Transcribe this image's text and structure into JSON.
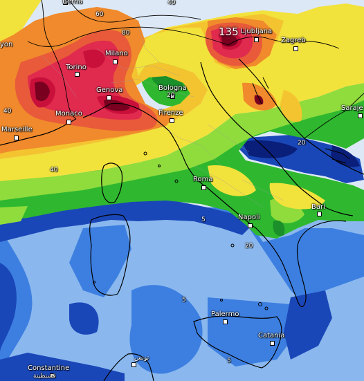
{
  "cities": {
    "bern": "Berna",
    "milano": "Milano",
    "torino": "Torino",
    "genova": "Genova",
    "monaco": "Monaco",
    "marseille": "Marseille",
    "bologna": "Bologna",
    "firenze": "Firenze",
    "roma": "Roma",
    "napoli": "Napoli",
    "bari": "Bari",
    "palermo": "Palermo",
    "catania": "Catania",
    "ljubljana": "Ljubljana",
    "zagreb": "Zagreb",
    "sarajevo": "Saraje",
    "lyon": "yon",
    "constantine": "Constantine",
    "constantine_ar": "قسنطينة",
    "tunis": "تونس"
  },
  "contour_values": {
    "v60": "60",
    "v80": "80",
    "v40_west": "40",
    "v40_south": "40",
    "v20_bologna": "20",
    "v20_croatia": "20",
    "v20_napoli": "20",
    "v5_tyrrhenian": "5",
    "v5_south": "5",
    "v5_sicily": "5",
    "v40_top": "40"
  },
  "max_value": "135",
  "colors": {
    "sea_light": "#dce8f5",
    "blue_light": "#8ab8ee",
    "blue_mid": "#3d7fe0",
    "blue_dark": "#1a47b8",
    "navy": "#0a1f7a",
    "green_light": "#8fdc3c",
    "green": "#2fb82f",
    "green_dark": "#1a8f2a",
    "yellow": "#f2e23c",
    "yellow_orange": "#f4c430",
    "orange": "#f08a2c",
    "red_orange": "#e85a3a",
    "red": "#e02a4e",
    "magenta": "#c8103a",
    "dark_red": "#7a0020"
  }
}
